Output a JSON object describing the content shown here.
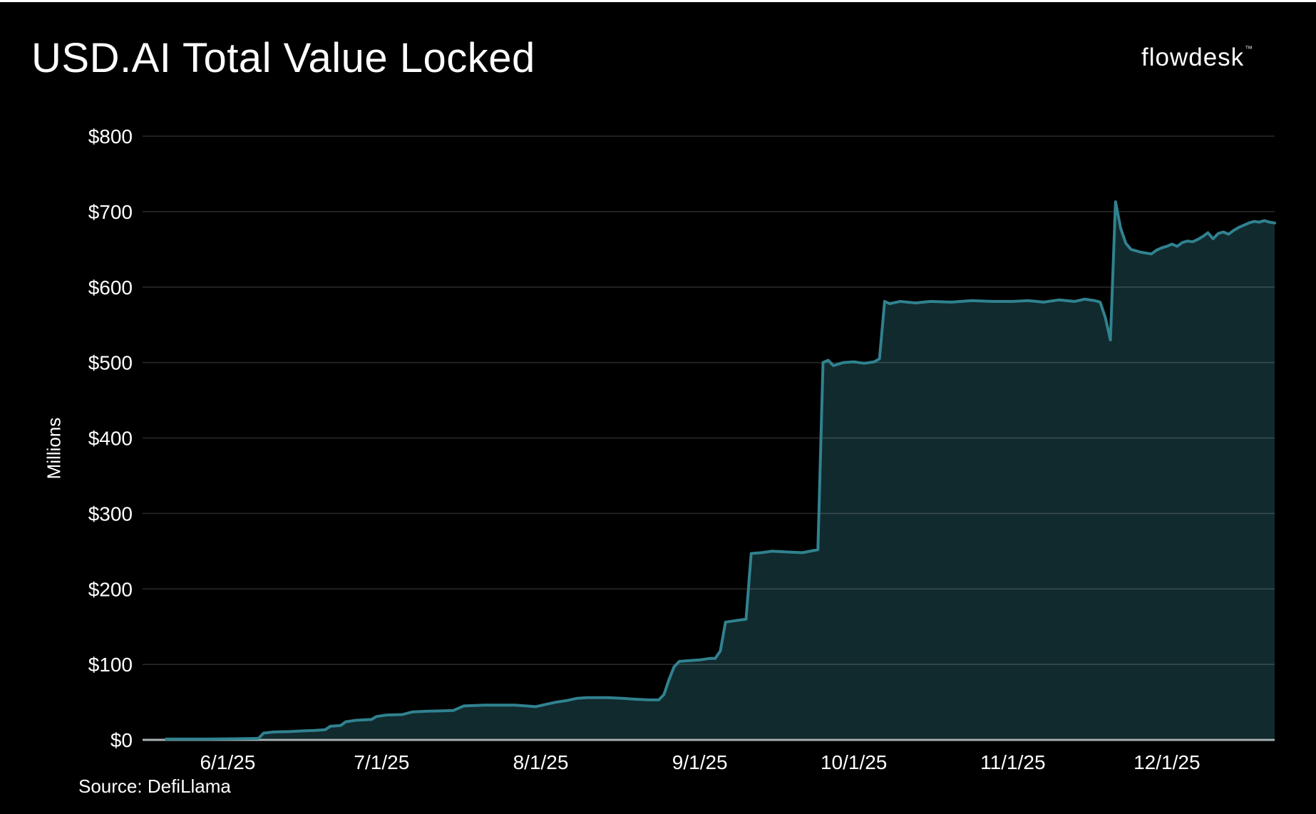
{
  "header": {
    "title": "USD.AI Total Value Locked",
    "logo": "flowdesk",
    "logo_tm": "™"
  },
  "footer": {
    "source": "Source: DefiLlama"
  },
  "chart_data": {
    "type": "area",
    "title": "USD.AI Total Value Locked",
    "xlabel": "",
    "ylabel": "Millions",
    "y_unit": "USD millions",
    "ylim": [
      0,
      800
    ],
    "x_range": [
      "2025-05-20",
      "2025-12-22"
    ],
    "grid": true,
    "legend": false,
    "background_color": "#000000",
    "line_color": "#30828f",
    "fill_color": "#112a2e",
    "gridline_color": "rgba(255,255,255,0.17)",
    "axis_color": "#a9b3b4",
    "yticks": [
      {
        "label": "$0",
        "value": 0
      },
      {
        "label": "$100",
        "value": 100
      },
      {
        "label": "$200",
        "value": 200
      },
      {
        "label": "$300",
        "value": 300
      },
      {
        "label": "$400",
        "value": 400
      },
      {
        "label": "$500",
        "value": 500
      },
      {
        "label": "$600",
        "value": 600
      },
      {
        "label": "$700",
        "value": 700
      },
      {
        "label": "$800",
        "value": 800
      }
    ],
    "xticks": [
      {
        "label": "6/1/25",
        "date": "2025-06-01"
      },
      {
        "label": "7/1/25",
        "date": "2025-07-01"
      },
      {
        "label": "8/1/25",
        "date": "2025-08-01"
      },
      {
        "label": "9/1/25",
        "date": "2025-09-01"
      },
      {
        "label": "10/1/25",
        "date": "2025-10-01"
      },
      {
        "label": "11/1/25",
        "date": "2025-11-01"
      },
      {
        "label": "12/1/25",
        "date": "2025-12-01"
      }
    ],
    "series": [
      {
        "name": "USD.AI TVL",
        "points": [
          [
            "2025-05-20",
            1
          ],
          [
            "2025-05-28",
            1
          ],
          [
            "2025-06-03",
            1.5
          ],
          [
            "2025-06-07",
            2
          ],
          [
            "2025-06-08",
            9
          ],
          [
            "2025-06-10",
            10.5
          ],
          [
            "2025-06-13",
            11
          ],
          [
            "2025-06-16",
            12
          ],
          [
            "2025-06-18",
            12.5
          ],
          [
            "2025-06-20",
            13.5
          ],
          [
            "2025-06-21",
            18
          ],
          [
            "2025-06-23",
            19
          ],
          [
            "2025-06-24",
            24
          ],
          [
            "2025-06-26",
            26
          ],
          [
            "2025-06-29",
            27
          ],
          [
            "2025-06-30",
            31
          ],
          [
            "2025-07-02",
            33
          ],
          [
            "2025-07-05",
            33.5
          ],
          [
            "2025-07-07",
            37
          ],
          [
            "2025-07-10",
            38
          ],
          [
            "2025-07-13",
            38.5
          ],
          [
            "2025-07-15",
            39
          ],
          [
            "2025-07-17",
            45
          ],
          [
            "2025-07-21",
            46
          ],
          [
            "2025-07-27",
            46
          ],
          [
            "2025-07-31",
            44
          ],
          [
            "2025-08-02",
            47
          ],
          [
            "2025-08-04",
            50
          ],
          [
            "2025-08-06",
            52
          ],
          [
            "2025-08-08",
            55
          ],
          [
            "2025-08-10",
            56
          ],
          [
            "2025-08-14",
            56
          ],
          [
            "2025-08-17",
            55
          ],
          [
            "2025-08-19",
            54
          ],
          [
            "2025-08-22",
            53
          ],
          [
            "2025-08-24",
            53
          ],
          [
            "2025-08-25",
            60
          ],
          [
            "2025-08-26",
            80
          ],
          [
            "2025-08-27",
            97
          ],
          [
            "2025-08-28",
            104
          ],
          [
            "2025-08-30",
            105
          ],
          [
            "2025-09-01",
            106
          ],
          [
            "2025-09-03",
            108
          ],
          [
            "2025-09-04",
            108
          ],
          [
            "2025-09-05",
            118
          ],
          [
            "2025-09-06",
            156
          ],
          [
            "2025-09-08",
            158
          ],
          [
            "2025-09-10",
            160
          ],
          [
            "2025-09-11",
            247
          ],
          [
            "2025-09-13",
            248
          ],
          [
            "2025-09-15",
            250
          ],
          [
            "2025-09-18",
            249
          ],
          [
            "2025-09-21",
            248
          ],
          [
            "2025-09-24",
            252
          ],
          [
            "2025-09-25",
            500
          ],
          [
            "2025-09-26",
            503
          ],
          [
            "2025-09-27",
            496
          ],
          [
            "2025-09-29",
            500
          ],
          [
            "2025-10-01",
            501
          ],
          [
            "2025-10-03",
            499
          ],
          [
            "2025-10-05",
            501
          ],
          [
            "2025-10-06",
            505
          ],
          [
            "2025-10-07",
            581
          ],
          [
            "2025-10-08",
            578
          ],
          [
            "2025-10-10",
            581
          ],
          [
            "2025-10-13",
            579
          ],
          [
            "2025-10-16",
            581
          ],
          [
            "2025-10-20",
            580
          ],
          [
            "2025-10-24",
            582
          ],
          [
            "2025-10-28",
            581
          ],
          [
            "2025-11-01",
            581
          ],
          [
            "2025-11-04",
            582
          ],
          [
            "2025-11-07",
            580
          ],
          [
            "2025-11-10",
            583
          ],
          [
            "2025-11-13",
            581
          ],
          [
            "2025-11-15",
            584
          ],
          [
            "2025-11-17",
            582
          ],
          [
            "2025-11-18",
            580
          ],
          [
            "2025-11-19",
            560
          ],
          [
            "2025-11-20",
            530
          ],
          [
            "2025-11-21",
            713
          ],
          [
            "2025-11-22",
            678
          ],
          [
            "2025-11-23",
            658
          ],
          [
            "2025-11-24",
            650
          ],
          [
            "2025-11-26",
            646
          ],
          [
            "2025-11-28",
            644
          ],
          [
            "2025-11-29",
            649
          ],
          [
            "2025-11-30",
            652
          ],
          [
            "2025-12-01",
            654
          ],
          [
            "2025-12-02",
            657
          ],
          [
            "2025-12-03",
            654
          ],
          [
            "2025-12-04",
            659
          ],
          [
            "2025-12-05",
            661
          ],
          [
            "2025-12-06",
            660
          ],
          [
            "2025-12-07",
            663
          ],
          [
            "2025-12-08",
            667
          ],
          [
            "2025-12-09",
            672
          ],
          [
            "2025-12-10",
            664
          ],
          [
            "2025-12-11",
            671
          ],
          [
            "2025-12-12",
            673
          ],
          [
            "2025-12-13",
            670
          ],
          [
            "2025-12-14",
            675
          ],
          [
            "2025-12-15",
            679
          ],
          [
            "2025-12-16",
            682
          ],
          [
            "2025-12-17",
            685
          ],
          [
            "2025-12-18",
            687
          ],
          [
            "2025-12-19",
            686
          ],
          [
            "2025-12-20",
            688
          ],
          [
            "2025-12-21",
            686
          ],
          [
            "2025-12-22",
            685
          ]
        ]
      }
    ]
  }
}
